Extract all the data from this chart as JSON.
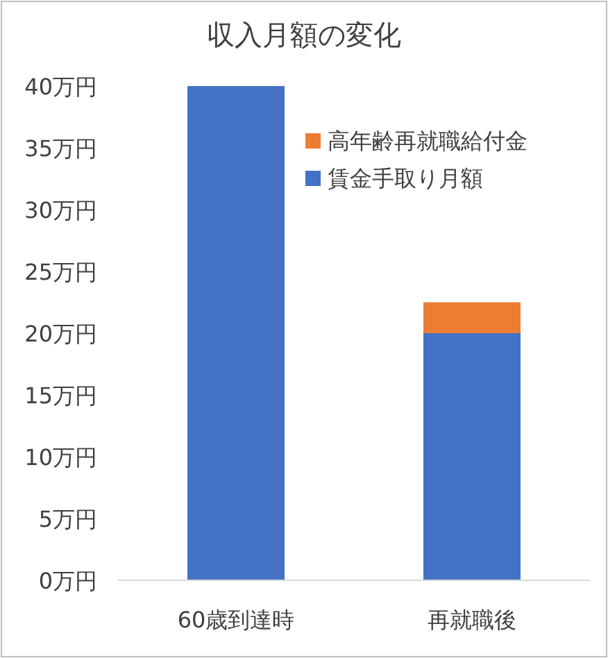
{
  "chart_data": {
    "type": "bar",
    "title": "収入月額の変化",
    "categories": [
      "60歳到達時",
      "再就職後"
    ],
    "stacked": true,
    "series": [
      {
        "name": "賃金手取り月額",
        "color": "#4472c4",
        "values": [
          40,
          20
        ]
      },
      {
        "name": "高年齢再就職給付金",
        "color": "#ed7d31",
        "values": [
          0,
          2.5
        ]
      }
    ],
    "ylim": [
      0,
      40
    ],
    "yticks": [
      {
        "value": 0,
        "label": "0万円"
      },
      {
        "value": 5,
        "label": "5万円"
      },
      {
        "value": 10,
        "label": "10万円"
      },
      {
        "value": 15,
        "label": "15万円"
      },
      {
        "value": 20,
        "label": "20万円"
      },
      {
        "value": 25,
        "label": "25万円"
      },
      {
        "value": 30,
        "label": "30万円"
      },
      {
        "value": 35,
        "label": "35万円"
      },
      {
        "value": 40,
        "label": "40万円"
      }
    ],
    "legend": "top right"
  }
}
